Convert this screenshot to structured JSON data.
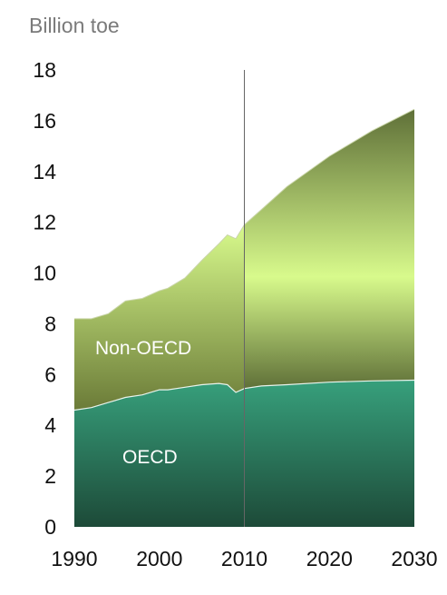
{
  "chart_data": {
    "type": "area",
    "stacked": true,
    "ylabel": "Billion toe",
    "xlim": [
      1990,
      2030
    ],
    "ylim": [
      0,
      18
    ],
    "yticks": [
      0,
      2,
      4,
      6,
      8,
      10,
      12,
      14,
      16,
      18
    ],
    "xticks": [
      1990,
      2000,
      2010,
      2020,
      2030
    ],
    "vline_x": 2010,
    "grid": false,
    "series": [
      {
        "name": "OECD",
        "color_top": "#37a07c",
        "color_bottom": "#1d4a38",
        "x": [
          1990,
          1992,
          1994,
          1996,
          1998,
          2000,
          2001,
          2003,
          2005,
          2007,
          2008,
          2009,
          2010,
          2012,
          2015,
          2020,
          2025,
          2030
        ],
        "values": [
          4.6,
          4.7,
          4.9,
          5.1,
          5.2,
          5.4,
          5.4,
          5.5,
          5.6,
          5.65,
          5.6,
          5.3,
          5.45,
          5.55,
          5.6,
          5.7,
          5.75,
          5.78
        ]
      },
      {
        "name": "Non-OECD",
        "color_top": "#d8fa8c",
        "color_bottom": "#6b7b38",
        "color_bottom_right": "#5f7038",
        "x": [
          1990,
          1992,
          1994,
          1996,
          1998,
          2000,
          2001,
          2003,
          2005,
          2007,
          2008,
          2009,
          2010,
          2012,
          2015,
          2020,
          2025,
          2030
        ],
        "values": [
          3.6,
          3.5,
          3.5,
          3.8,
          3.8,
          3.9,
          4.0,
          4.3,
          4.9,
          5.5,
          5.9,
          6.05,
          6.45,
          6.95,
          7.8,
          8.9,
          9.85,
          10.67
        ]
      }
    ]
  }
}
